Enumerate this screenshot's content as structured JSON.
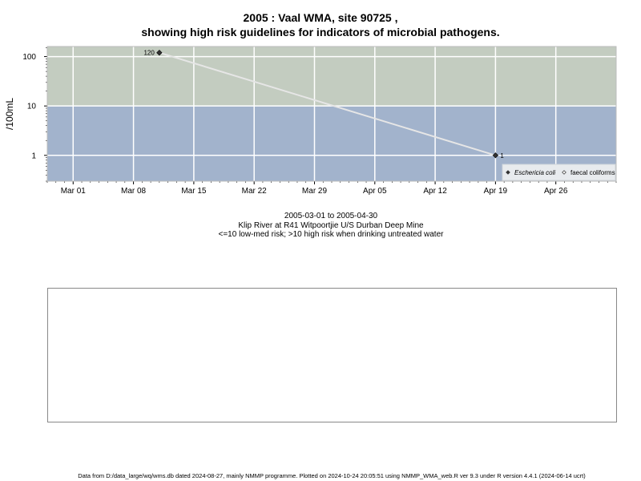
{
  "title_line1": "2005 : Vaal WMA, site 90725 ,",
  "title_line2": "showing high risk guidelines for indicators of microbial pathogens.",
  "subtitle": {
    "date_range": "2005-03-01 to 2005-04-30",
    "site": "Klip River at R41 Witpoortjie U/S Durban Deep Mine",
    "guideline": "<=10 low-med risk; >10 high risk when drinking untreated water"
  },
  "footer": "Data from D:/data_large/wq/wms.db dated 2024-08-27, mainly NMMP programme. Plotted on 2024-10-24 20:05:51 using NMMP_WMA_web.R ver 9.3 under R version 4.4.1 (2024-06-14 ucrt)",
  "colors": {
    "high_risk_band": "#c3ccc0",
    "low_risk_band": "#a2b3cc",
    "grid": "#ffffff",
    "series_line": "#e6e6e6",
    "point": "#333333"
  },
  "chart_data": {
    "type": "line",
    "xlabel": "",
    "ylabel": "/100mL",
    "yscale": "log",
    "xlim": [
      "2005-02-26",
      "2005-05-03"
    ],
    "ylim": [
      0.3,
      160
    ],
    "x_ticks": [
      {
        "date": "2005-03-01",
        "label": "Mar 01"
      },
      {
        "date": "2005-03-08",
        "label": "Mar 08"
      },
      {
        "date": "2005-03-15",
        "label": "Mar 15"
      },
      {
        "date": "2005-03-22",
        "label": "Mar 22"
      },
      {
        "date": "2005-03-29",
        "label": "Mar 29"
      },
      {
        "date": "2005-04-05",
        "label": "Apr 05"
      },
      {
        "date": "2005-04-12",
        "label": "Apr 12"
      },
      {
        "date": "2005-04-19",
        "label": "Apr 19"
      },
      {
        "date": "2005-04-26",
        "label": "Apr 26"
      }
    ],
    "y_ticks": [
      {
        "value": 1,
        "label": "1"
      },
      {
        "value": 10,
        "label": "10"
      },
      {
        "value": 100,
        "label": "100"
      }
    ],
    "threshold": 10,
    "grid": true,
    "legend_position": "bottom-right",
    "series": [
      {
        "name": "Eschericia coli",
        "marker": "filled-diamond",
        "points": [
          {
            "x": "2005-03-11",
            "y": 120,
            "label": "120"
          },
          {
            "x": "2005-04-19",
            "y": 1,
            "label": "1"
          }
        ]
      },
      {
        "name": "faecal coliforms",
        "marker": "open-diamond",
        "points": []
      }
    ]
  }
}
